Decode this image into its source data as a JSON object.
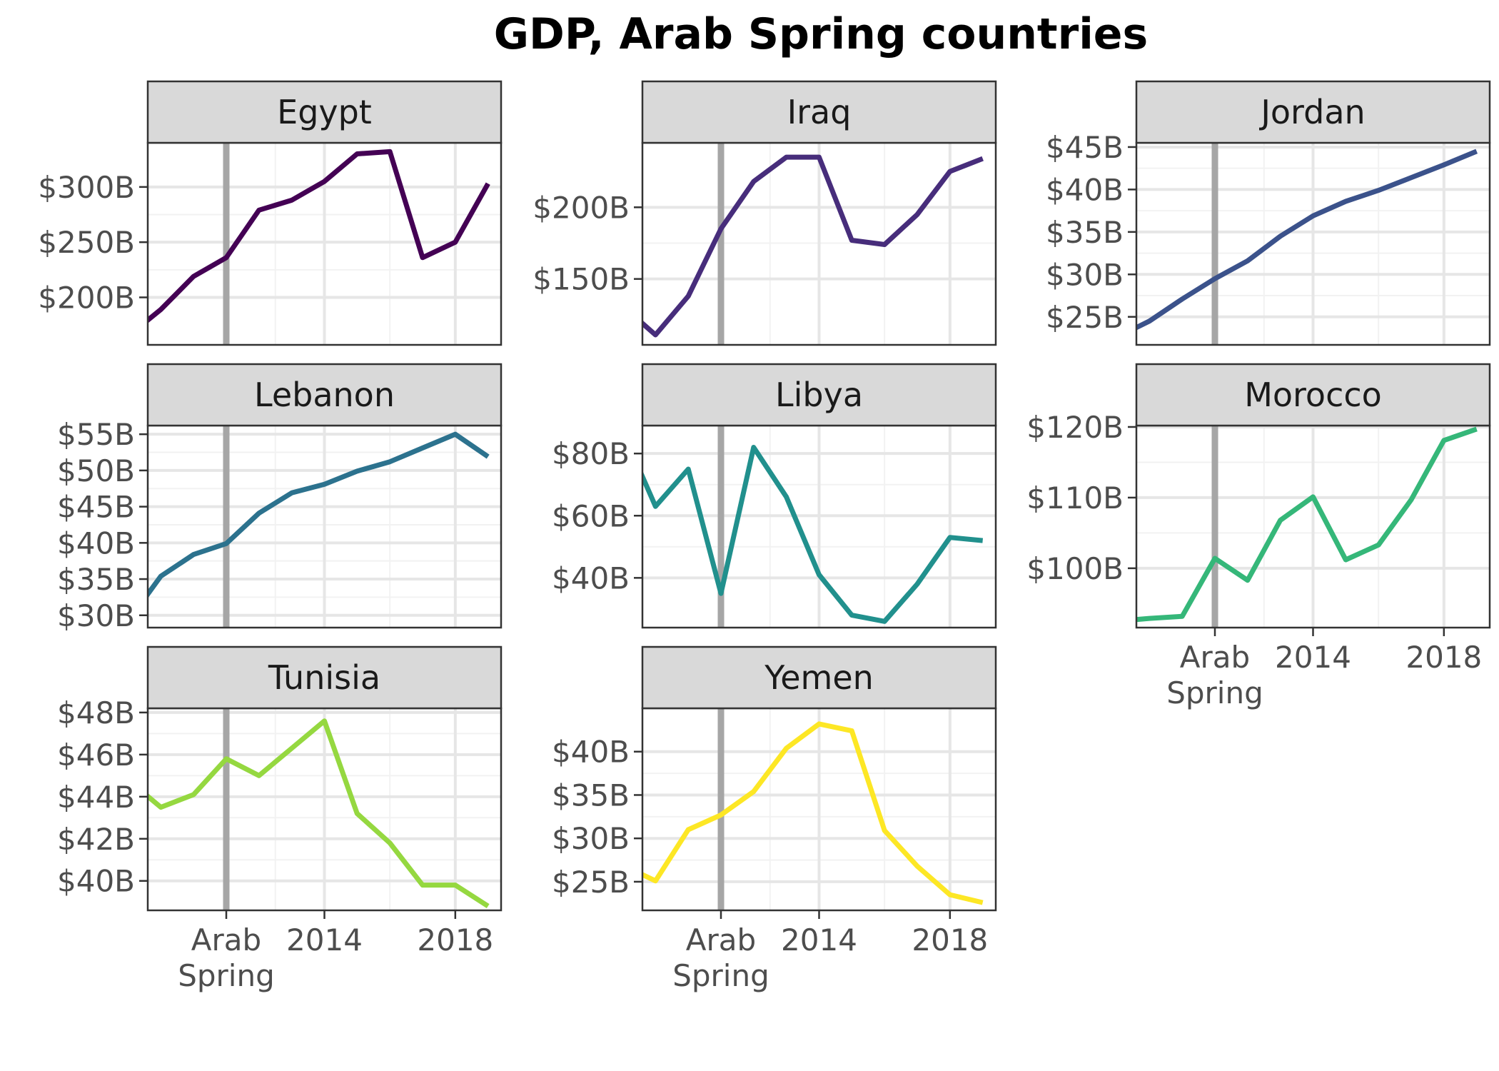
{
  "chart_data": {
    "type": "line",
    "title": "GDP, Arab Spring countries",
    "xlabel": "",
    "ylabel": "",
    "layout": "facet grid, 3 columns",
    "x": [
      2009,
      2010,
      2011,
      2012,
      2013,
      2014,
      2015,
      2016,
      2017,
      2018,
      2019
    ],
    "x_tick_labels": [
      {
        "value": 2011,
        "label": "Arab\nSpring"
      },
      {
        "value": 2014,
        "label": "2014"
      },
      {
        "value": 2018,
        "label": "2018"
      }
    ],
    "xlim": [
      2008.6,
      2019.4
    ],
    "reference_line": {
      "x": 2011,
      "color": "#a6a6a6"
    },
    "grid": true,
    "legend": "none",
    "panels": [
      {
        "name": "Egypt",
        "color": "#440154",
        "x": [
          2008,
          2009,
          2010,
          2011,
          2012,
          2013,
          2014,
          2015,
          2016,
          2017,
          2018,
          2019
        ],
        "values": [
          165,
          189,
          219,
          236,
          279,
          288,
          305,
          330,
          332,
          236,
          250,
          303
        ],
        "yticks": [
          200,
          250,
          300
        ],
        "tick_labels": [
          "$200B",
          "$250B",
          "$300B"
        ],
        "ylim": [
          157,
          340
        ]
      },
      {
        "name": "Iraq",
        "color": "#472d7b",
        "x": [
          2008,
          2009,
          2010,
          2011,
          2012,
          2013,
          2014,
          2015,
          2016,
          2017,
          2018,
          2019
        ],
        "values": [
          131,
          111,
          138,
          185,
          218,
          235,
          235,
          177,
          174,
          195,
          225,
          234
        ],
        "yticks": [
          150,
          200
        ],
        "tick_labels": [
          "$150B",
          "$200B"
        ],
        "ylim": [
          104,
          245
        ]
      },
      {
        "name": "Jordan",
        "color": "#3b528b",
        "x": [
          2008,
          2009,
          2010,
          2011,
          2012,
          2013,
          2014,
          2015,
          2016,
          2017,
          2018,
          2019
        ],
        "values": [
          22.6,
          24.5,
          27.1,
          29.5,
          31.6,
          34.5,
          36.9,
          38.6,
          39.9,
          41.4,
          42.9,
          44.5
        ],
        "yticks": [
          25,
          30,
          35,
          40,
          45
        ],
        "tick_labels": [
          "$25B",
          "$30B",
          "$35B",
          "$40B",
          "$45B"
        ],
        "ylim": [
          21.7,
          45.5
        ]
      },
      {
        "name": "Lebanon",
        "color": "#2c728e",
        "x": [
          2008,
          2009,
          2010,
          2011,
          2012,
          2013,
          2014,
          2015,
          2016,
          2017,
          2018,
          2019
        ],
        "values": [
          29.2,
          35.4,
          38.4,
          39.9,
          44.1,
          46.9,
          48.1,
          49.9,
          51.2,
          53.1,
          55.0,
          51.9
        ],
        "yticks": [
          30,
          35,
          40,
          45,
          50,
          55
        ],
        "tick_labels": [
          "$30B",
          "$35B",
          "$40B",
          "$45B",
          "$50B",
          "$55B"
        ],
        "ylim": [
          28.3,
          56.2
        ]
      },
      {
        "name": "Libya",
        "color": "#21908d",
        "x": [
          2008,
          2009,
          2010,
          2011,
          2012,
          2013,
          2014,
          2015,
          2016,
          2017,
          2018,
          2019
        ],
        "values": [
          87,
          63,
          75,
          35,
          82,
          66,
          41,
          28,
          26,
          38,
          53,
          52
        ],
        "yticks": [
          40,
          60,
          80
        ],
        "tick_labels": [
          "$40B",
          "$60B",
          "$80B"
        ],
        "ylim": [
          24,
          89
        ]
      },
      {
        "name": "Morocco",
        "color": "#35b779",
        "x": [
          2008,
          2009,
          2010,
          2011,
          2012,
          2013,
          2014,
          2015,
          2016,
          2017,
          2018,
          2019
        ],
        "values": [
          92.5,
          92.9,
          93.2,
          101.4,
          98.3,
          106.8,
          110.1,
          101.2,
          103.3,
          109.7,
          118.1,
          119.7
        ],
        "yticks": [
          100,
          110,
          120
        ],
        "tick_labels": [
          "$100B",
          "$110B",
          "$120B"
        ],
        "ylim": [
          91.6,
          120.2
        ]
      },
      {
        "name": "Tunisia",
        "color": "#95d840",
        "x": [
          2008,
          2009,
          2010,
          2011,
          2012,
          2013,
          2014,
          2015,
          2016,
          2017,
          2018,
          2019
        ],
        "values": [
          44.8,
          43.5,
          44.1,
          45.8,
          45.0,
          46.3,
          47.6,
          43.2,
          41.8,
          39.8,
          39.8,
          38.8
        ],
        "yticks": [
          40,
          42,
          44,
          46,
          48
        ],
        "tick_labels": [
          "$40B",
          "$42B",
          "$44B",
          "$46B",
          "$48B"
        ],
        "ylim": [
          38.6,
          48.2
        ]
      },
      {
        "name": "Yemen",
        "color": "#fde725",
        "x": [
          2008,
          2009,
          2010,
          2011,
          2012,
          2013,
          2014,
          2015,
          2016,
          2017,
          2018,
          2019
        ],
        "values": [
          26.9,
          25.1,
          31.0,
          32.7,
          35.4,
          40.4,
          43.2,
          42.4,
          30.9,
          26.8,
          23.5,
          22.6
        ],
        "yticks": [
          25,
          30,
          35,
          40
        ],
        "tick_labels": [
          "$25B",
          "$30B",
          "$35B",
          "$40B"
        ],
        "ylim": [
          21.7,
          45.0
        ]
      }
    ]
  }
}
